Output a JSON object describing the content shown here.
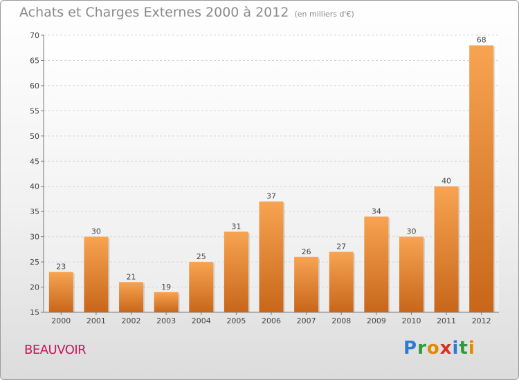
{
  "header": {
    "title": "Achats et Charges Externes 2000 à 2012",
    "subtitle": "(en milliers d'€)"
  },
  "footer": {
    "commune": "BEAUVOIR",
    "logo_letters": [
      {
        "ch": "P",
        "color": "#2e7bd6"
      },
      {
        "ch": "r",
        "color": "#2e9a3a"
      },
      {
        "ch": "o",
        "color": "#e08a00"
      },
      {
        "ch": "x",
        "color": "#d93025"
      },
      {
        "ch": "i",
        "color": "#2e7bd6"
      },
      {
        "ch": "t",
        "color": "#2e9a3a"
      },
      {
        "ch": "i",
        "color": "#e08a00"
      }
    ]
  },
  "chart_data": {
    "type": "bar",
    "title": "Achats et Charges Externes 2000 à 2012",
    "subtitle": "(en milliers d'€)",
    "categories": [
      "2000",
      "2001",
      "2002",
      "2003",
      "2004",
      "2005",
      "2006",
      "2007",
      "2008",
      "2009",
      "2010",
      "2011",
      "2012"
    ],
    "values": [
      23,
      30,
      21,
      19,
      25,
      31,
      37,
      26,
      27,
      34,
      30,
      40,
      68
    ],
    "ylim": [
      15,
      70
    ],
    "yticks": [
      15,
      20,
      25,
      30,
      35,
      40,
      45,
      50,
      55,
      60,
      65,
      70
    ],
    "grid": true,
    "bar_color_top": "#f7a452",
    "bar_color_bottom": "#c8661a"
  }
}
